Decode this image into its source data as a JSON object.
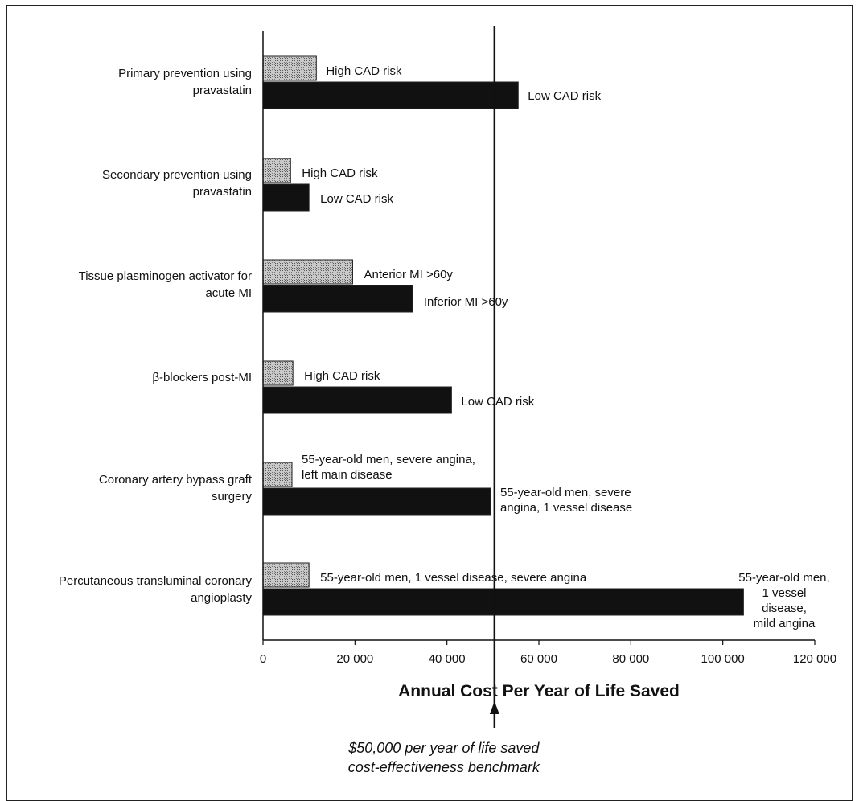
{
  "chart_data": {
    "type": "bar",
    "orientation": "horizontal",
    "xlabel": "Annual Cost Per Year of Life Saved",
    "xlim": [
      0,
      120000
    ],
    "xticks": [
      0,
      20000,
      40000,
      60000,
      80000,
      100000,
      120000
    ],
    "xtick_labels": [
      "0",
      "20 000",
      "40 000",
      "60 000",
      "80 000",
      "100 000",
      "120 000"
    ],
    "grid": false,
    "groups": [
      {
        "category": [
          "Primary prevention using",
          "pravastatin"
        ],
        "bars": [
          {
            "label": [
              "High CAD risk"
            ],
            "value": 11600,
            "style": "hatched"
          },
          {
            "label": [
              "Low CAD risk"
            ],
            "value": 55500,
            "style": "solid"
          }
        ]
      },
      {
        "category": [
          "Secondary prevention using",
          "pravastatin"
        ],
        "bars": [
          {
            "label": [
              "High CAD risk"
            ],
            "value": 6000,
            "style": "hatched"
          },
          {
            "label": [
              "Low CAD risk"
            ],
            "value": 10000,
            "style": "solid"
          }
        ]
      },
      {
        "category": [
          "Tissue plasminogen activator for",
          "acute MI"
        ],
        "bars": [
          {
            "label": [
              "Anterior MI >60y"
            ],
            "value": 19500,
            "style": "hatched"
          },
          {
            "label": [
              "Inferior MI >60y"
            ],
            "value": 32500,
            "style": "solid"
          }
        ]
      },
      {
        "category": [
          "β-blockers post-MI"
        ],
        "bars": [
          {
            "label": [
              "High CAD risk"
            ],
            "value": 6500,
            "style": "hatched"
          },
          {
            "label": [
              "Low CAD risk"
            ],
            "value": 41000,
            "style": "solid"
          }
        ]
      },
      {
        "category": [
          "Coronary artery bypass graft",
          "surgery"
        ],
        "bars": [
          {
            "label": [
              "55-year-old men, severe angina,",
              "left main disease"
            ],
            "value": 6300,
            "style": "hatched"
          },
          {
            "label": [
              "55-year-old men, severe",
              "angina, 1 vessel disease"
            ],
            "value": 49500,
            "style": "solid"
          }
        ]
      },
      {
        "category": [
          "Percutaneous transluminal coronary",
          "angioplasty"
        ],
        "bars": [
          {
            "label": [
              "55-year-old men, 1 vessel disease, severe angina"
            ],
            "value": 10000,
            "style": "hatched"
          },
          {
            "label": [
              "55-year-old men,",
              "1 vessel",
              "disease,",
              "mild angina"
            ],
            "value": 104500,
            "style": "solid"
          }
        ]
      }
    ],
    "benchmark": {
      "value": 50000,
      "label": [
        "$50,000 per year of life saved",
        "cost-effectiveness benchmark"
      ]
    },
    "colors": {
      "solid": "#111111",
      "hatched": "#9a9a9a",
      "line": "#111111"
    }
  }
}
